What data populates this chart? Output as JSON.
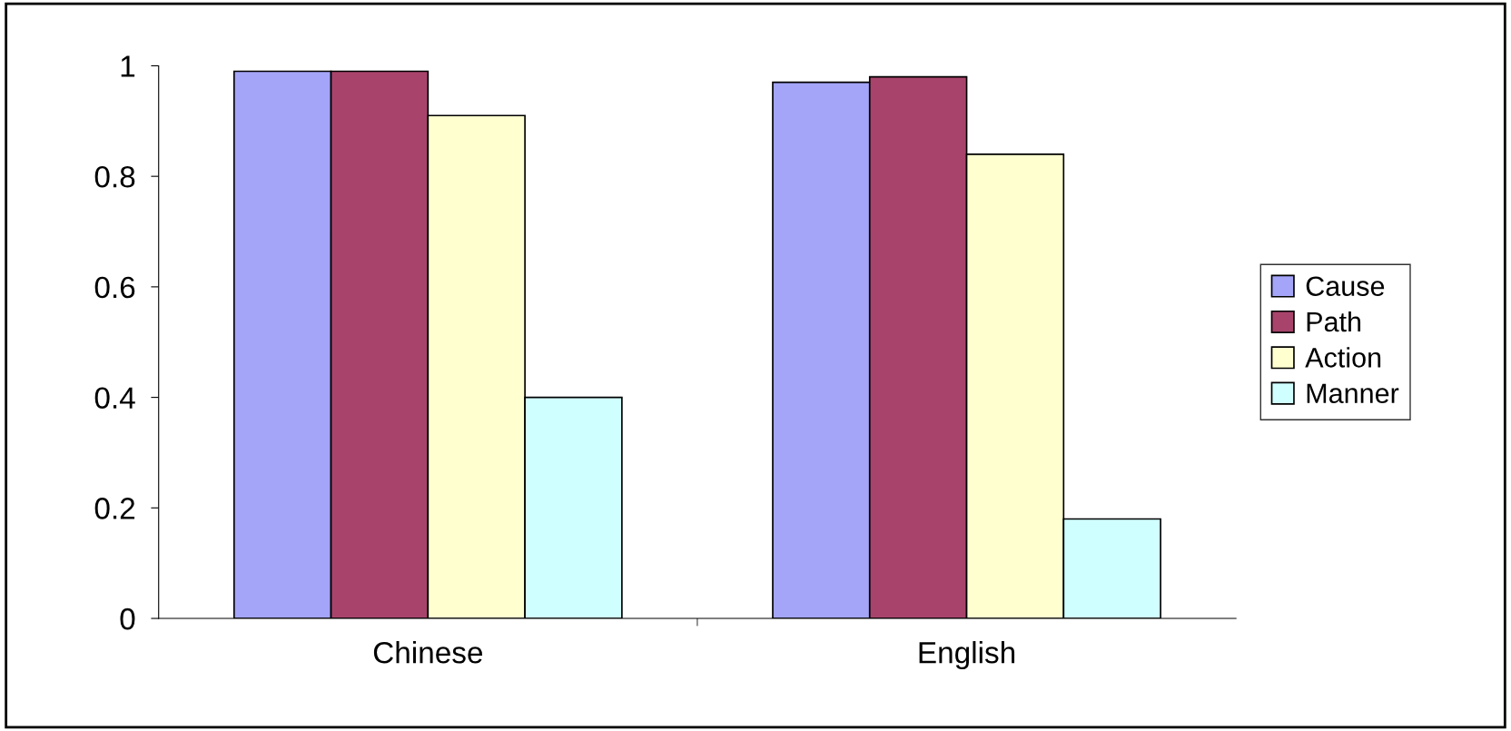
{
  "chart_data": {
    "type": "bar",
    "categories": [
      "Chinese",
      "English"
    ],
    "series": [
      {
        "name": "Cause",
        "color": "#a4a4f8",
        "values": [
          0.99,
          0.97
        ]
      },
      {
        "name": "Path",
        "color": "#a8446c",
        "values": [
          0.99,
          0.98
        ]
      },
      {
        "name": "Action",
        "color": "#ffffd0",
        "values": [
          0.91,
          0.84
        ]
      },
      {
        "name": "Manner",
        "color": "#d0ffff",
        "values": [
          0.4,
          0.18
        ]
      }
    ],
    "ylim": [
      0,
      1
    ],
    "yticks": [
      0,
      0.2,
      0.4,
      0.6,
      0.8,
      1
    ],
    "grid": false,
    "legend": "right"
  }
}
